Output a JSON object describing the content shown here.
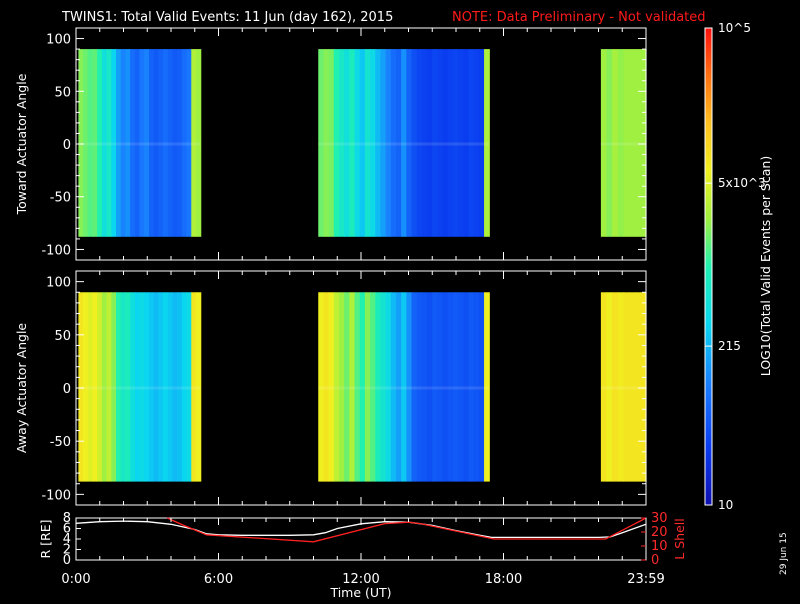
{
  "header": {
    "title": "TWINS1: Total Valid Events: 11 Jun (day 162), 2015",
    "note": "NOTE: Data Preliminary - Not validated"
  },
  "stamp": "29 Jun 15",
  "colors": {
    "background": "#000000",
    "axes": "#ffffff",
    "note": "#ff1a1a",
    "lshell": "#ff2020",
    "radius": "#ffffff"
  },
  "colorbar": {
    "label": "LOG10(Total Valid Events per Scan)",
    "scale": "log",
    "range": [
      10,
      100000
    ],
    "ticks": [
      {
        "value": 100000,
        "label": "10^5"
      },
      {
        "value": 5000,
        "label": "5x10^3"
      },
      {
        "value": 215,
        "label": "215"
      },
      {
        "value": 10,
        "label": "10"
      }
    ]
  },
  "chart_data": [
    {
      "type": "heatmap",
      "ylabel": "Toward Actuator Angle",
      "ylim": [
        -110,
        110
      ],
      "yticks": [
        "100",
        "50",
        "0",
        "-50",
        "-100"
      ],
      "xlim": [
        0,
        24
      ],
      "data_extent_y": [
        -88,
        90
      ],
      "segments": [
        {
          "start": 0.1,
          "end": 5.25,
          "levels": [
            0.58,
            0.56,
            0.54,
            0.55,
            0.5,
            0.42,
            0.46,
            0.38,
            0.3,
            0.26,
            0.28,
            0.22,
            0.2,
            0.24,
            0.26,
            0.2,
            0.18,
            0.2,
            0.22,
            0.2,
            0.18,
            0.19,
            0.22,
            0.24,
            0.62,
            0.6
          ]
        },
        {
          "start": 10.2,
          "end": 17.4,
          "levels": [
            0.56,
            0.58,
            0.57,
            0.5,
            0.46,
            0.42,
            0.48,
            0.4,
            0.36,
            0.44,
            0.4,
            0.34,
            0.3,
            0.26,
            0.22,
            0.2,
            0.28,
            0.2,
            0.16,
            0.14,
            0.13,
            0.12,
            0.14,
            0.13,
            0.12,
            0.13,
            0.14,
            0.13,
            0.12,
            0.14,
            0.13,
            0.12,
            0.62
          ]
        },
        {
          "start": 22.1,
          "end": 24.0,
          "levels": [
            0.6,
            0.58,
            0.61,
            0.59,
            0.6,
            0.6,
            0.6,
            0.6
          ]
        }
      ]
    },
    {
      "type": "heatmap",
      "ylabel": "Away Actuator Angle",
      "ylim": [
        -110,
        110
      ],
      "yticks": [
        "100",
        "50",
        "0",
        "-50",
        "-100"
      ],
      "xlim": [
        0,
        24
      ],
      "data_extent_y": [
        -88,
        90
      ],
      "segments": [
        {
          "start": 0.1,
          "end": 5.25,
          "levels": [
            0.72,
            0.7,
            0.68,
            0.7,
            0.66,
            0.6,
            0.64,
            0.58,
            0.5,
            0.46,
            0.48,
            0.42,
            0.38,
            0.4,
            0.38,
            0.36,
            0.34,
            0.36,
            0.38,
            0.36,
            0.34,
            0.35,
            0.38,
            0.4,
            0.72,
            0.7
          ]
        },
        {
          "start": 10.2,
          "end": 17.4,
          "levels": [
            0.7,
            0.72,
            0.7,
            0.64,
            0.6,
            0.56,
            0.62,
            0.54,
            0.5,
            0.58,
            0.54,
            0.48,
            0.44,
            0.4,
            0.34,
            0.3,
            0.36,
            0.28,
            0.2,
            0.18,
            0.17,
            0.16,
            0.18,
            0.17,
            0.16,
            0.17,
            0.18,
            0.17,
            0.16,
            0.18,
            0.17,
            0.16,
            0.7
          ]
        },
        {
          "start": 22.1,
          "end": 24.0,
          "levels": [
            0.72,
            0.7,
            0.73,
            0.71,
            0.72,
            0.72,
            0.72,
            0.72
          ]
        }
      ]
    },
    {
      "type": "line",
      "xlabel": "Time (UT)",
      "ylabel_left": "R [RE]",
      "ylabel_right": "L Shell",
      "xticks": [
        "0:00",
        "6:00",
        "12:00",
        "18:00",
        "23:59"
      ],
      "xtick_values": [
        0,
        6,
        12,
        18,
        24
      ],
      "ylim_left": [
        0,
        8
      ],
      "yticks_left": [
        "8",
        "6",
        "4",
        "2",
        "0"
      ],
      "ylim_right": [
        0,
        30
      ],
      "yticks_right": [
        "30",
        "20",
        "10",
        "0"
      ],
      "series": [
        {
          "name": "R",
          "axis": "left",
          "color": "#ffffff",
          "x": [
            0,
            1,
            2,
            3,
            4,
            5,
            5.5,
            6,
            7,
            8,
            9,
            10,
            10.5,
            11,
            12,
            13,
            14,
            15,
            16,
            17,
            17.5,
            18,
            19,
            20,
            21,
            22,
            22.5,
            23,
            24
          ],
          "y": [
            7.0,
            7.3,
            7.4,
            7.3,
            6.8,
            5.8,
            5.0,
            4.8,
            4.7,
            4.7,
            4.7,
            4.8,
            5.2,
            6.0,
            6.9,
            7.3,
            7.2,
            6.6,
            5.6,
            4.7,
            4.3,
            4.3,
            4.3,
            4.3,
            4.3,
            4.3,
            4.4,
            5.2,
            6.8
          ]
        },
        {
          "name": "L Shell",
          "axis": "right",
          "color": "#ff2020",
          "x": [
            3.85,
            4.5,
            5.5,
            10.0,
            13.0,
            14.0,
            14.5,
            17.6,
            22.3,
            24.0
          ],
          "y": [
            30,
            25,
            18,
            13,
            26,
            27,
            26,
            15,
            15,
            30
          ]
        }
      ]
    }
  ]
}
